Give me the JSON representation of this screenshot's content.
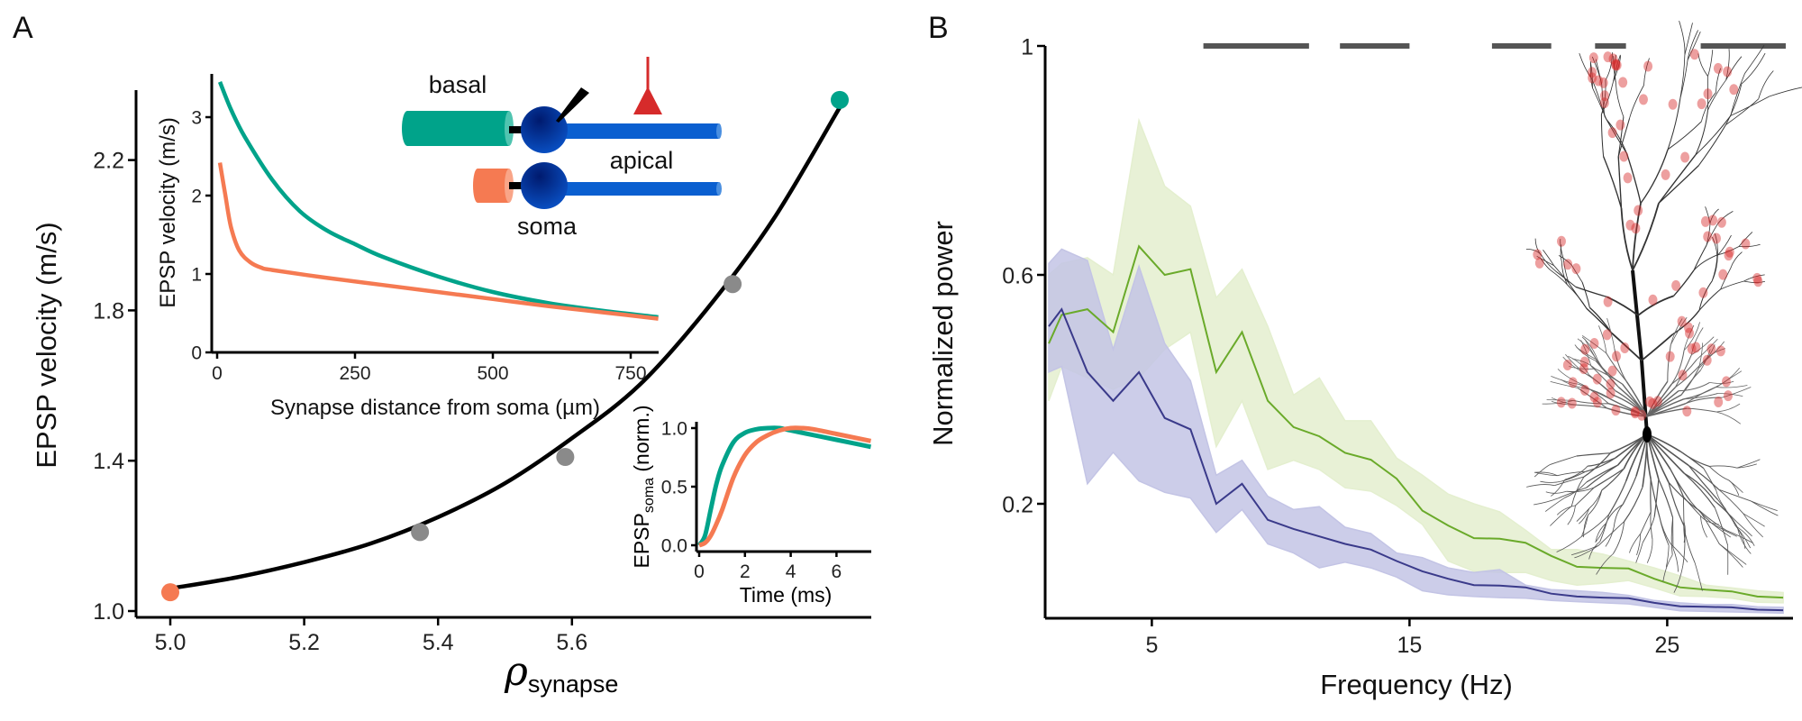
{
  "panels": {
    "a": "A",
    "b": "B"
  },
  "colors": {
    "teal": "#00a38a",
    "orange": "#f57a52",
    "gray": "#8a8a8a",
    "red": "#d62b2b",
    "soma_blue": "#0a3fa8",
    "apical_blue": "#0a5fd0",
    "green_line": "#6aaa2a",
    "green_band": "#e4efcf",
    "blue_line": "#3a3a8a",
    "blue_band": "#c3c4e5",
    "sig_bar": "#555555"
  },
  "diagram": {
    "basal": "basal",
    "apical": "apical",
    "soma": "soma"
  },
  "chart_data": [
    {
      "id": "A-main",
      "type": "line",
      "xlabel_symbol": "ρ",
      "xlabel_sub": "synapse",
      "ylabel": "EPSP velocity (m/s)",
      "xlim": [
        4.95,
        6.05
      ],
      "ylim": [
        0.98,
        2.39
      ],
      "xticks": [
        "5.0",
        "5.2",
        "5.4",
        "5.6"
      ],
      "yticks": [
        "1.0",
        "1.4",
        "1.8",
        "2.2"
      ],
      "curve": {
        "x": [
          5.0,
          5.1,
          5.2,
          5.3,
          5.4,
          5.5,
          5.6,
          5.7,
          5.8,
          5.9,
          6.0
        ],
        "y": [
          1.06,
          1.09,
          1.13,
          1.18,
          1.25,
          1.34,
          1.46,
          1.6,
          1.8,
          2.04,
          2.34
        ],
        "color": "#000000"
      },
      "points": [
        {
          "x": 5.0,
          "y": 1.05,
          "color": "#f57a52"
        },
        {
          "x": 5.373,
          "y": 1.21,
          "color": "#8a8a8a"
        },
        {
          "x": 5.59,
          "y": 1.41,
          "color": "#8a8a8a"
        },
        {
          "x": 5.84,
          "y": 1.87,
          "color": "#8a8a8a"
        },
        {
          "x": 6.0,
          "y": 2.36,
          "color": "#00a38a"
        }
      ]
    },
    {
      "id": "A-inset-velocity",
      "type": "line",
      "xlabel": "Synapse distance from soma (µm)",
      "ylabel": "EPSP velocity (m/s)",
      "xlim": [
        0,
        800
      ],
      "ylim": [
        0,
        3.5
      ],
      "xticks": [
        "0",
        "250",
        "500",
        "750"
      ],
      "yticks": [
        "0",
        "1",
        "2",
        "3"
      ],
      "series": [
        {
          "color": "#00a38a",
          "x": [
            5,
            25,
            50,
            100,
            150,
            200,
            250,
            300,
            400,
            500,
            600,
            700,
            800
          ],
          "y": [
            3.45,
            3.1,
            2.75,
            2.2,
            1.8,
            1.55,
            1.38,
            1.22,
            0.97,
            0.77,
            0.63,
            0.53,
            0.45
          ]
        },
        {
          "color": "#f57a52",
          "x": [
            5,
            15,
            25,
            40,
            60,
            80,
            100,
            200,
            300,
            400,
            500,
            600,
            700,
            800
          ],
          "y": [
            2.42,
            2.0,
            1.6,
            1.3,
            1.15,
            1.08,
            1.05,
            0.95,
            0.86,
            0.77,
            0.68,
            0.59,
            0.51,
            0.43
          ]
        }
      ]
    },
    {
      "id": "A-inset-epsp",
      "type": "line",
      "xlabel": "Time (ms)",
      "ylabel_main": "EPSP",
      "ylabel_sub": "soma",
      "ylabel_tail": " (norm.)",
      "xlim": [
        0,
        7.5
      ],
      "ylim": [
        0,
        1.05
      ],
      "xticks": [
        "0",
        "2",
        "4",
        "6"
      ],
      "yticks": [
        "0.0",
        "0.5",
        "1.0"
      ],
      "series": [
        {
          "color": "#00a38a",
          "x": [
            0,
            0.25,
            0.5,
            0.75,
            1,
            1.5,
            2,
            2.5,
            3,
            3.5,
            4,
            5,
            6,
            7.5
          ],
          "y": [
            0,
            0.08,
            0.3,
            0.52,
            0.68,
            0.88,
            0.96,
            0.99,
            1.0,
            1.0,
            0.98,
            0.94,
            0.9,
            0.84
          ]
        },
        {
          "color": "#f57a52",
          "x": [
            0,
            0.25,
            0.5,
            0.75,
            1,
            1.5,
            2,
            2.5,
            3,
            3.5,
            4,
            4.5,
            5,
            6,
            7.5
          ],
          "y": [
            0,
            0.02,
            0.08,
            0.18,
            0.3,
            0.58,
            0.77,
            0.88,
            0.94,
            0.98,
            1.0,
            1.0,
            0.99,
            0.95,
            0.89
          ]
        }
      ]
    },
    {
      "id": "B",
      "type": "area",
      "xlabel": "Frequency (Hz)",
      "ylabel": "Normalized power",
      "xlim": [
        1,
        29.6
      ],
      "ylim": [
        0,
        1
      ],
      "xticks": [
        "5",
        "15",
        "25"
      ],
      "yticks": [
        "0.2",
        "0.6",
        "1"
      ],
      "significance_bars_at": 1,
      "significance_bars": [
        [
          7,
          11.1
        ],
        [
          12.3,
          15
        ],
        [
          18.2,
          20.5
        ],
        [
          22.2,
          23.4
        ],
        [
          26.3,
          29.6
        ]
      ],
      "x": [
        1,
        1.5,
        2.5,
        3.5,
        4.5,
        5.5,
        6.5,
        7.5,
        8.5,
        9.5,
        10.5,
        11.5,
        12.5,
        13.5,
        14.5,
        15.5,
        16.5,
        17.5,
        18.5,
        19.5,
        20.5,
        21.5,
        22.5,
        23.5,
        24.5,
        25.5,
        26.5,
        27.5,
        28.5,
        29.5
      ],
      "series": [
        {
          "color": "#6aaa2a",
          "band_color": "#e4efcf",
          "mean": [
            0.48,
            0.53,
            0.54,
            0.5,
            0.65,
            0.6,
            0.61,
            0.43,
            0.5,
            0.38,
            0.334,
            0.318,
            0.289,
            0.277,
            0.244,
            0.188,
            0.162,
            0.14,
            0.139,
            0.132,
            0.109,
            0.09,
            0.088,
            0.087,
            0.069,
            0.054,
            0.05,
            0.047,
            0.038,
            0.036
          ],
          "upper": [
            0.6,
            0.62,
            0.63,
            0.6,
            0.87,
            0.755,
            0.72,
            0.56,
            0.61,
            0.51,
            0.39,
            0.42,
            0.345,
            0.345,
            0.28,
            0.25,
            0.217,
            0.2,
            0.186,
            0.154,
            0.12,
            0.12,
            0.112,
            0.1,
            0.088,
            0.074,
            0.058,
            0.053,
            0.048,
            0.045
          ],
          "lower": [
            0.38,
            0.44,
            0.42,
            0.4,
            0.42,
            0.47,
            0.5,
            0.3,
            0.38,
            0.26,
            0.276,
            0.26,
            0.228,
            0.222,
            0.197,
            0.164,
            0.1,
            0.082,
            0.08,
            0.08,
            0.066,
            0.058,
            0.061,
            0.066,
            0.053,
            0.039,
            0.038,
            0.035,
            0.028,
            0.027
          ]
        },
        {
          "color": "#3a3a8a",
          "band_color": "#c3c4e5",
          "mean": [
            0.51,
            0.54,
            0.43,
            0.38,
            0.43,
            0.35,
            0.33,
            0.2,
            0.235,
            0.172,
            0.156,
            0.143,
            0.13,
            0.12,
            0.1,
            0.082,
            0.069,
            0.058,
            0.057,
            0.054,
            0.043,
            0.038,
            0.036,
            0.035,
            0.027,
            0.021,
            0.02,
            0.019,
            0.015,
            0.014
          ],
          "upper": [
            0.62,
            0.645,
            0.625,
            0.47,
            0.615,
            0.48,
            0.415,
            0.25,
            0.276,
            0.213,
            0.19,
            0.195,
            0.159,
            0.148,
            0.114,
            0.106,
            0.088,
            0.08,
            0.085,
            0.058,
            0.05,
            0.048,
            0.045,
            0.04,
            0.031,
            0.027,
            0.024,
            0.024,
            0.02,
            0.019
          ],
          "lower": [
            0.43,
            0.44,
            0.235,
            0.29,
            0.24,
            0.22,
            0.21,
            0.15,
            0.19,
            0.13,
            0.114,
            0.088,
            0.098,
            0.088,
            0.072,
            0.048,
            0.041,
            0.038,
            0.036,
            0.035,
            0.031,
            0.029,
            0.027,
            0.025,
            0.019,
            0.013,
            0.012,
            0.011,
            0.01,
            0.009
          ]
        }
      ]
    }
  ]
}
